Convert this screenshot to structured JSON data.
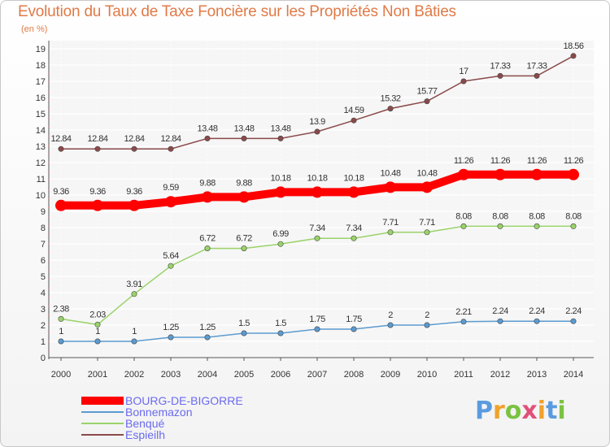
{
  "title": "Evolution du Taux de Taxe Foncière sur les Propriétés Non Bâties",
  "subtitle": "(en %)",
  "logo": {
    "text": "Proxiti",
    "letters": [
      "P",
      "r",
      "o",
      "x",
      "i",
      "t",
      "i"
    ],
    "colors": [
      "#5a9be0",
      "#f0a22b",
      "#7cc242",
      "#e24f7a",
      "#f0a22b",
      "#5a9be0",
      "#7cc242"
    ]
  },
  "chart_data": {
    "type": "line",
    "title": "Evolution du Taux de Taxe Foncière sur les Propriétés Non Bâties",
    "ylabel": "(en %)",
    "xlabel": "",
    "x": [
      "2000",
      "2001",
      "2002",
      "2003",
      "2004",
      "2005",
      "2006",
      "2007",
      "2008",
      "2009",
      "2010",
      "2011",
      "2012",
      "2013",
      "2014"
    ],
    "ylim": [
      0,
      19
    ],
    "yticks": [
      "0",
      "1",
      "2",
      "3",
      "4",
      "5",
      "6",
      "7",
      "8",
      "9",
      "10",
      "11",
      "12",
      "13",
      "14",
      "15",
      "16",
      "17",
      "18",
      "19"
    ],
    "grid": true,
    "legend_position": "bottom-left",
    "series": [
      {
        "name": "BOURG-DE-BIGORRE",
        "color": "#ff0000",
        "emphasis": true,
        "values": [
          9.36,
          9.36,
          9.36,
          9.59,
          9.88,
          9.88,
          10.18,
          10.18,
          10.18,
          10.48,
          10.48,
          11.26,
          11.26,
          11.26,
          11.26
        ],
        "labels": [
          "9.36",
          "9.36",
          "9.36",
          "9.59",
          "9.88",
          "9.88",
          "10.18",
          "10.18",
          "10.18",
          "10.48",
          "10.48",
          "11.26",
          "11.26",
          "11.26",
          "11.26"
        ]
      },
      {
        "name": "Bonnemazon",
        "color": "#5b9bd0",
        "emphasis": false,
        "values": [
          1,
          1,
          1,
          1.25,
          1.25,
          1.5,
          1.5,
          1.75,
          1.75,
          2,
          2,
          2.21,
          2.24,
          2.24,
          2.24
        ],
        "labels": [
          "1",
          "1",
          "1",
          "1.25",
          "1.25",
          "1.5",
          "1.5",
          "1.75",
          "1.75",
          "2",
          "2",
          "2.21",
          "2.24",
          "2.24",
          "2.24"
        ]
      },
      {
        "name": "Benqué",
        "color": "#9ad36a",
        "emphasis": false,
        "values": [
          2.38,
          2.03,
          3.91,
          5.64,
          6.72,
          6.72,
          6.99,
          7.34,
          7.34,
          7.71,
          7.71,
          8.08,
          8.08,
          8.08,
          8.08
        ],
        "labels": [
          "2.38",
          "2.03",
          "3.91",
          "5.64",
          "6.72",
          "6.72",
          "6.99",
          "7.34",
          "7.34",
          "7.71",
          "7.71",
          "8.08",
          "8.08",
          "8.08",
          "8.08"
        ]
      },
      {
        "name": "Espieilh",
        "color": "#8b4a4a",
        "emphasis": false,
        "values": [
          12.84,
          12.84,
          12.84,
          12.84,
          13.48,
          13.48,
          13.48,
          13.9,
          14.59,
          15.32,
          15.77,
          17,
          17.33,
          17.33,
          18.56
        ],
        "labels": [
          "12.84",
          "12.84",
          "12.84",
          "12.84",
          "13.48",
          "13.48",
          "13.48",
          "13.9",
          "14.59",
          "15.32",
          "15.77",
          "17",
          "17.33",
          "17.33",
          "18.56"
        ]
      }
    ]
  }
}
